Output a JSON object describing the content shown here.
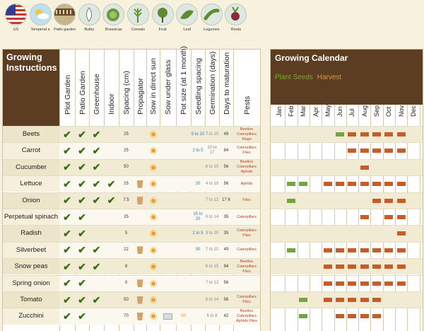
{
  "categories": [
    {
      "name": "us-flag-icon",
      "label": "US"
    },
    {
      "name": "temperate-icon",
      "label": "Temperat e"
    },
    {
      "name": "patio-garden-icon",
      "label": "Patio garden"
    },
    {
      "name": "bulbs-icon",
      "label": "Bulbs"
    },
    {
      "name": "brassicas-icon",
      "label": "Brassicas"
    },
    {
      "name": "cereals-icon",
      "label": "Cereals"
    },
    {
      "name": "fruit-icon",
      "label": "Fruit"
    },
    {
      "name": "leaf-icon",
      "label": "Leaf"
    },
    {
      "name": "legumes-icon",
      "label": "Legumes"
    },
    {
      "name": "roots-icon",
      "label": "Roots"
    }
  ],
  "instructions": {
    "title": "Growing Instructions",
    "columns": [
      "Plot Garden",
      "Patio Garden",
      "Greenhouse",
      "Indoor",
      "Spacing (cm)",
      "Propagator",
      "Sow in direct sun",
      "Sow under glass",
      "Pot size (at 1 month)",
      "Seedling spacing",
      "Germination (days)",
      "Days to maturation",
      "Pests"
    ],
    "rows": [
      {
        "name": "Beets",
        "plot": "✔",
        "patio": "✔",
        "green": "✔",
        "indoor": "",
        "spacing": "25",
        "prop": false,
        "sun": true,
        "glass": false,
        "pot": "",
        "seedling": "5 to 10",
        "germ": "7 to 10",
        "days": "49",
        "pests": "Beetles Caterpillars Slugs"
      },
      {
        "name": "Carrot",
        "plot": "✔",
        "patio": "✔",
        "green": "✔",
        "indoor": "",
        "spacing": "25",
        "prop": false,
        "sun": true,
        "glass": false,
        "pot": "",
        "seedling": "2 to 5",
        "germ": "10 to 17",
        "days": "84",
        "pests": "Caterpillars Flies"
      },
      {
        "name": "Cucumber",
        "plot": "✔",
        "patio": "✔",
        "green": "✔",
        "indoor": "",
        "spacing": "50",
        "prop": false,
        "sun": true,
        "glass": false,
        "pot": "",
        "seedling": "",
        "germ": "6 to 10",
        "days": "56",
        "pests": "Beetles Caterpillars Aphids"
      },
      {
        "name": "Lettuce",
        "plot": "✔",
        "patio": "✔",
        "green": "✔",
        "indoor": "✔",
        "spacing": "25",
        "prop": true,
        "sun": true,
        "glass": false,
        "pot": "",
        "seedling": "20",
        "germ": "4 to 10",
        "days": "56",
        "pests": "Aphids"
      },
      {
        "name": "Onion",
        "plot": "✔",
        "patio": "✔",
        "green": "✔",
        "indoor": "✔",
        "spacing": "7.5",
        "prop": true,
        "sun": true,
        "glass": false,
        "pot": "",
        "seedling": "",
        "germ": "7 to 12",
        "days": "17 6",
        "pests": "Flies"
      },
      {
        "name": "Perpetual spinach",
        "plot": "✔",
        "patio": "✔",
        "green": "",
        "indoor": "",
        "spacing": "25",
        "prop": false,
        "sun": true,
        "glass": false,
        "pot": "",
        "seedling": "15 to 20",
        "germ": "6 to 14",
        "days": "35",
        "pests": "Caterpillars"
      },
      {
        "name": "Radish",
        "plot": "✔",
        "patio": "✔",
        "green": "",
        "indoor": "",
        "spacing": "5",
        "prop": false,
        "sun": true,
        "glass": false,
        "pot": "",
        "seedling": "2 to 5",
        "germ": "3 to 10",
        "days": "35",
        "pests": "Caterpillars Flies"
      },
      {
        "name": "Silverbeet",
        "plot": "✔",
        "patio": "✔",
        "green": "✔",
        "indoor": "",
        "spacing": "22",
        "prop": true,
        "sun": true,
        "glass": false,
        "pot": "",
        "seedling": "30",
        "germ": "7 to 10",
        "days": "49",
        "pests": "Caterpillars"
      },
      {
        "name": "Snow peas",
        "plot": "✔",
        "patio": "✔",
        "green": "✔",
        "indoor": "",
        "spacing": "8",
        "prop": false,
        "sun": true,
        "glass": false,
        "pot": "",
        "seedling": "",
        "germ": "6 to 15",
        "days": "84",
        "pests": "Beetles Caterpillars Flies"
      },
      {
        "name": "Spring onion",
        "plot": "✔",
        "patio": "✔",
        "green": "",
        "indoor": "",
        "spacing": "0",
        "prop": true,
        "sun": true,
        "glass": false,
        "pot": "",
        "seedling": "",
        "germ": "7 to 12",
        "days": "56",
        "pests": ""
      },
      {
        "name": "Tomato",
        "plot": "✔",
        "patio": "✔",
        "green": "✔",
        "indoor": "",
        "spacing": "50",
        "prop": true,
        "sun": true,
        "glass": false,
        "pot": "",
        "seedling": "",
        "germ": "6 to 14",
        "days": "56",
        "pests": "Caterpillars Flies"
      },
      {
        "name": "Zucchini",
        "plot": "✔",
        "patio": "✔",
        "green": "",
        "indoor": "",
        "spacing": "70",
        "prop": true,
        "sun": true,
        "glass": true,
        "pot": "50",
        "seedling": "",
        "germ": "6 to 8",
        "days": "42",
        "pests": "Beetles Caterpillars Aphids Flies"
      }
    ]
  },
  "calendar": {
    "title": "Growing Calendar",
    "legend_seed": "Plant Seeds",
    "legend_harvest": "Harvest",
    "seed_color": "#74a442",
    "harvest_color": "#c65c2a",
    "months": [
      "Jan",
      "Feb",
      "Mar",
      "Apr",
      "May",
      "Jun",
      "Jul",
      "Aug",
      "Sep",
      "Oct",
      "Nov",
      "Dec"
    ],
    "rows": [
      {
        "seed": [
          6
        ],
        "harvest": [
          7,
          8,
          9,
          10,
          11
        ]
      },
      {
        "seed": [],
        "harvest": [
          7,
          8,
          9,
          10,
          11
        ]
      },
      {
        "seed": [],
        "harvest": [
          8
        ]
      },
      {
        "seed": [
          2,
          3
        ],
        "harvest": [
          5,
          6,
          7,
          8,
          9,
          10,
          11
        ]
      },
      {
        "seed": [
          2
        ],
        "harvest": [
          9,
          10,
          11
        ]
      },
      {
        "seed": [],
        "harvest": [
          8,
          10,
          11
        ]
      },
      {
        "seed": [],
        "harvest": [
          11
        ]
      },
      {
        "seed": [
          2
        ],
        "harvest": [
          5,
          6,
          7,
          8,
          9,
          10,
          11
        ]
      },
      {
        "seed": [],
        "harvest": [
          5,
          6,
          7,
          8,
          9,
          10,
          11
        ]
      },
      {
        "seed": [],
        "harvest": [
          5,
          6,
          7,
          8,
          9,
          10,
          11
        ]
      },
      {
        "seed": [
          3
        ],
        "harvest": [
          5,
          6,
          7,
          8,
          9
        ]
      },
      {
        "seed": [
          3
        ],
        "harvest": [
          6,
          7,
          8,
          9
        ]
      }
    ]
  }
}
